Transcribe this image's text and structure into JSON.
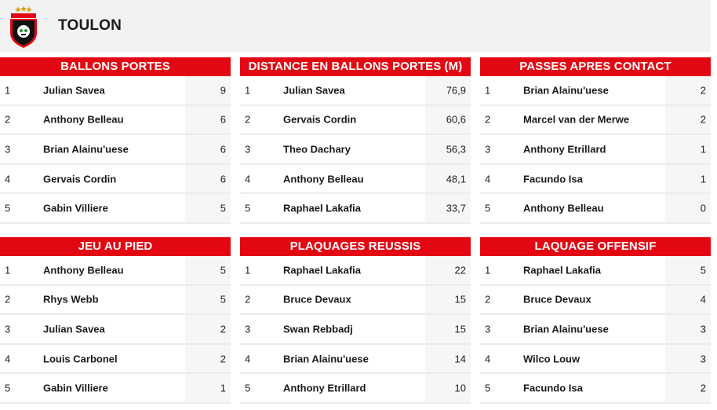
{
  "header": {
    "team_name": "TOULON"
  },
  "tables": [
    {
      "title": "BALLONS PORTES",
      "rows": [
        {
          "rank": "1",
          "player": "Julian Savea",
          "value": "9"
        },
        {
          "rank": "2",
          "player": "Anthony Belleau",
          "value": "6"
        },
        {
          "rank": "3",
          "player": "Brian Alainu'uese",
          "value": "6"
        },
        {
          "rank": "4",
          "player": "Gervais Cordin",
          "value": "6"
        },
        {
          "rank": "5",
          "player": "Gabin Villiere",
          "value": "5"
        }
      ]
    },
    {
      "title": "DISTANCE EN BALLONS PORTES (M)",
      "rows": [
        {
          "rank": "1",
          "player": "Julian Savea",
          "value": "76,9"
        },
        {
          "rank": "2",
          "player": "Gervais Cordin",
          "value": "60,6"
        },
        {
          "rank": "3",
          "player": "Theo Dachary",
          "value": "56,3"
        },
        {
          "rank": "4",
          "player": "Anthony Belleau",
          "value": "48,1"
        },
        {
          "rank": "5",
          "player": "Raphael Lakafia",
          "value": "33,7"
        }
      ]
    },
    {
      "title": "PASSES APRES CONTACT",
      "rows": [
        {
          "rank": "1",
          "player": "Brian Alainu'uese",
          "value": "2"
        },
        {
          "rank": "2",
          "player": "Marcel van der Merwe",
          "value": "2"
        },
        {
          "rank": "3",
          "player": "Anthony Etrillard",
          "value": "1"
        },
        {
          "rank": "4",
          "player": "Facundo Isa",
          "value": "1"
        },
        {
          "rank": "5",
          "player": "Anthony Belleau",
          "value": "0"
        }
      ]
    },
    {
      "title": "JEU AU PIED",
      "rows": [
        {
          "rank": "1",
          "player": "Anthony Belleau",
          "value": "5"
        },
        {
          "rank": "2",
          "player": "Rhys Webb",
          "value": "5"
        },
        {
          "rank": "3",
          "player": "Julian Savea",
          "value": "2"
        },
        {
          "rank": "4",
          "player": "Louis Carbonel",
          "value": "2"
        },
        {
          "rank": "5",
          "player": "Gabin Villiere",
          "value": "1"
        }
      ]
    },
    {
      "title": "PLAQUAGES REUSSIS",
      "rows": [
        {
          "rank": "1",
          "player": "Raphael Lakafia",
          "value": "22"
        },
        {
          "rank": "2",
          "player": "Bruce Devaux",
          "value": "15"
        },
        {
          "rank": "3",
          "player": "Swan Rebbadj",
          "value": "15"
        },
        {
          "rank": "4",
          "player": "Brian Alainu'uese",
          "value": "14"
        },
        {
          "rank": "5",
          "player": "Anthony Etrillard",
          "value": "10"
        }
      ]
    },
    {
      "title": "LAQUAGE OFFENSIF",
      "rows": [
        {
          "rank": "1",
          "player": "Raphael Lakafia",
          "value": "5"
        },
        {
          "rank": "2",
          "player": "Bruce Devaux",
          "value": "4"
        },
        {
          "rank": "3",
          "player": "Brian Alainu'uese",
          "value": "3"
        },
        {
          "rank": "4",
          "player": "Wilco Louw",
          "value": "3"
        },
        {
          "rank": "5",
          "player": "Facundo Isa",
          "value": "2"
        }
      ]
    }
  ],
  "colors": {
    "accent": "#e30613",
    "header_bg": "#f2f2f2",
    "logo_black": "#111111",
    "logo_green": "#2e8b3a",
    "logo_gold": "#d4a017"
  }
}
